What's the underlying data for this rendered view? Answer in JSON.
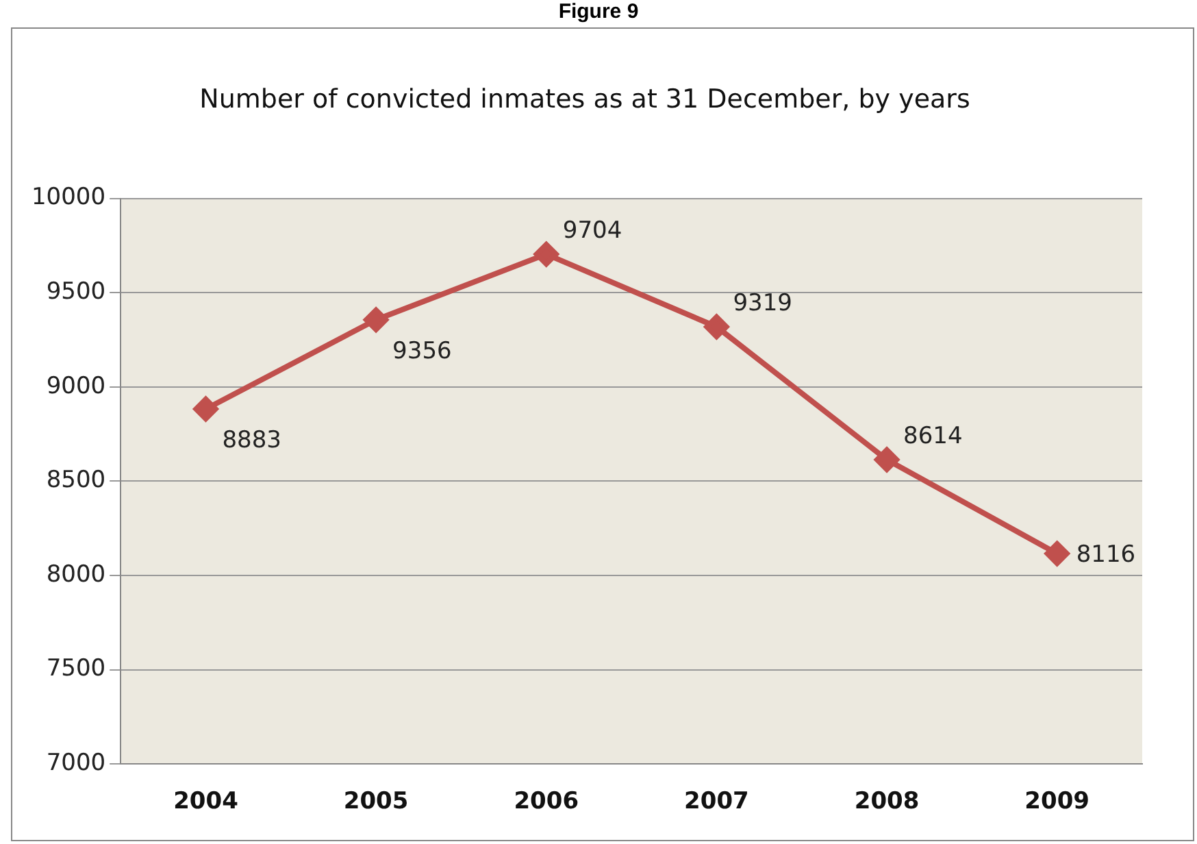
{
  "chart_data": {
    "type": "line",
    "title": "Number of convicted inmates as at 31 December, by years",
    "annotations": [
      "Figure 9"
    ],
    "categories": [
      "2004",
      "2005",
      "2006",
      "2007",
      "2008",
      "2009"
    ],
    "series": [
      {
        "color": "#c0504d",
        "values": [
          8883,
          9356,
          9704,
          9319,
          8614,
          8116
        ]
      }
    ],
    "ylim": [
      7000,
      10000
    ],
    "yticks": [
      7000,
      7500,
      8000,
      8500,
      9000,
      9500,
      10000
    ],
    "grid": "y",
    "legend": false,
    "marker": "diamond",
    "line_style": "solid",
    "data_labels": true
  }
}
